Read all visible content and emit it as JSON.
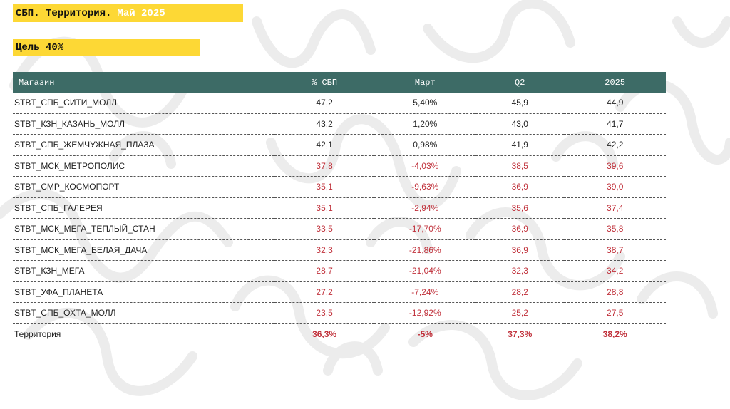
{
  "header": {
    "title": "СБП. Территория.",
    "period": "Май 2025",
    "goal": "Цель 40%"
  },
  "colors": {
    "highlight": "#fdd835",
    "table_header": "#3d6b66",
    "negative": "#c0303a"
  },
  "table": {
    "columns": [
      "Магазин",
      "% СБП",
      "Март",
      "Q2",
      "2025"
    ],
    "rows": [
      {
        "store": "STBT_СПБ_СИТИ_МОЛЛ",
        "sbp": "47,2",
        "march": "5,40%",
        "q2": "45,9",
        "year": "44,9",
        "below_goal": false
      },
      {
        "store": "STBT_КЗН_КАЗАНЬ_МОЛЛ",
        "sbp": "43,2",
        "march": "1,20%",
        "q2": "43,0",
        "year": "41,7",
        "below_goal": false
      },
      {
        "store": "STBT_СПБ_ЖЕМЧУЖНАЯ_ПЛАЗА",
        "sbp": "42,1",
        "march": "0,98%",
        "q2": "41,9",
        "year": "42,2",
        "below_goal": false
      },
      {
        "store": "STBT_МСК_МЕТРОПОЛИС",
        "sbp": "37,8",
        "march": "-4,03%",
        "q2": "38,5",
        "year": "39,6",
        "below_goal": true
      },
      {
        "store": "STBT_СМР_КОСМОПОРТ",
        "sbp": "35,1",
        "march": "-9,63%",
        "q2": "36,9",
        "year": "39,0",
        "below_goal": true
      },
      {
        "store": "STBT_СПБ_ГАЛЕРЕЯ",
        "sbp": "35,1",
        "march": "-2,94%",
        "q2": "35,6",
        "year": "37,4",
        "below_goal": true
      },
      {
        "store": "STBT_МСК_МЕГА_ТЕПЛЫЙ_СТАН",
        "sbp": "33,5",
        "march": "-17,70%",
        "q2": "36,9",
        "year": "35,8",
        "below_goal": true
      },
      {
        "store": "STBT_МСК_МЕГА_БЕЛАЯ_ДАЧА",
        "sbp": "32,3",
        "march": "-21,86%",
        "q2": "36,9",
        "year": "38,7",
        "below_goal": true
      },
      {
        "store": "STBT_КЗН_МЕГА",
        "sbp": "28,7",
        "march": "-21,04%",
        "q2": "32,3",
        "year": "34,2",
        "below_goal": true
      },
      {
        "store": "STBT_УФА_ПЛАНЕТА",
        "sbp": "27,2",
        "march": "-7,24%",
        "q2": "28,2",
        "year": "28,8",
        "below_goal": true
      },
      {
        "store": "STBT_СПБ_ОХТА_МОЛЛ",
        "sbp": "23,5",
        "march": "-12,92%",
        "q2": "25,2",
        "year": "27,5",
        "below_goal": true
      }
    ],
    "total": {
      "store": "Территория",
      "sbp": "36,3%",
      "march": "-5%",
      "q2": "37,3%",
      "year": "38,2%"
    }
  }
}
